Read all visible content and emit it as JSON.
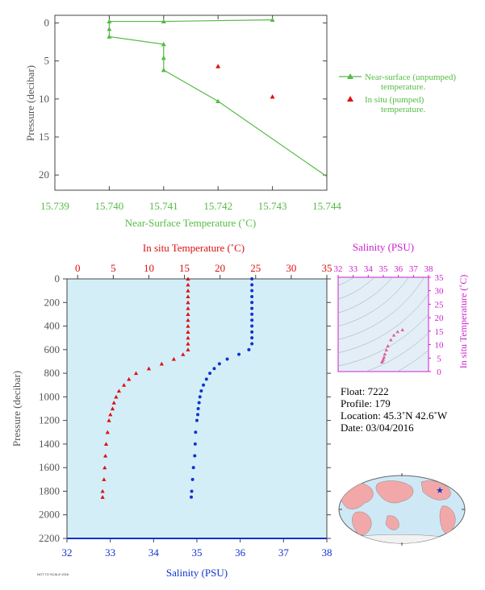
{
  "colors": {
    "green": "#55bb44",
    "red": "#dd1111",
    "blue": "#1133cc",
    "magenta": "#cc22cc",
    "axis_text": "#555555",
    "panel_bg": "#d4eef8"
  },
  "chart_data": [
    {
      "type": "line",
      "name": "near-surface",
      "xlabel": "Near-Surface Temperature (˚C)",
      "ylabel": "Pressure (decibar)",
      "xlim": [
        15.739,
        15.744
      ],
      "ylim": [
        22,
        -1
      ],
      "xticks": [
        "15.739",
        "15.740",
        "15.741",
        "15.742",
        "15.743",
        "15.744"
      ],
      "yticks": [
        "0",
        "5",
        "10",
        "15",
        "20"
      ],
      "series": [
        {
          "name": "Near-surface (unpumped) temperature.",
          "marker": "triangle",
          "x": [
            15.743,
            15.741,
            15.74,
            15.74,
            15.74,
            15.741,
            15.741,
            15.741,
            15.742,
            15.744
          ],
          "y": [
            -0.4,
            -0.2,
            -0.2,
            0.8,
            1.8,
            2.8,
            4.6,
            6.2,
            10.3,
            20.2
          ]
        },
        {
          "name": "In situ (pumped) temperature.",
          "marker": "triangle",
          "x": [
            15.742,
            15.743
          ],
          "y": [
            5.7,
            9.7
          ]
        }
      ],
      "legend": {
        "position": "right",
        "entries": [
          "Near-surface (unpumped)",
          "temperature.",
          "In situ (pumped)",
          "temperature."
        ]
      }
    },
    {
      "type": "scatter",
      "name": "profile",
      "ylabel": "Pressure (decibar)",
      "top_xlabel": "In situ Temperature (˚C)",
      "bottom_xlabel": "Salinity (PSU)",
      "temp_lim": [
        -1.5,
        35
      ],
      "sal_lim": [
        32,
        38
      ],
      "ylim": [
        2200,
        0
      ],
      "temp_ticks": [
        "0",
        "5",
        "10",
        "15",
        "20",
        "25",
        "30",
        "35"
      ],
      "sal_ticks": [
        "32",
        "33",
        "34",
        "35",
        "36",
        "37",
        "38"
      ],
      "yticks": [
        "0",
        "200",
        "400",
        "600",
        "800",
        "1000",
        "1200",
        "1400",
        "1600",
        "1800",
        "2000",
        "2200"
      ],
      "temperature": {
        "pressure": [
          0,
          50,
          100,
          150,
          200,
          250,
          300,
          350,
          400,
          450,
          500,
          550,
          600,
          640,
          680,
          720,
          760,
          800,
          850,
          900,
          950,
          1000,
          1050,
          1100,
          1150,
          1200,
          1300,
          1400,
          1500,
          1600,
          1700,
          1800,
          1850
        ],
        "values": [
          15.5,
          15.5,
          15.5,
          15.5,
          15.5,
          15.5,
          15.5,
          15.5,
          15.5,
          15.5,
          15.5,
          15.5,
          15.5,
          14.8,
          13.5,
          11.8,
          10.0,
          8.2,
          7.2,
          6.5,
          5.8,
          5.4,
          5.1,
          4.9,
          4.6,
          4.4,
          4.2,
          4.0,
          3.9,
          3.8,
          3.7,
          3.5,
          3.5
        ]
      },
      "salinity": {
        "pressure": [
          0,
          50,
          100,
          150,
          200,
          250,
          300,
          350,
          400,
          450,
          500,
          550,
          600,
          640,
          680,
          720,
          760,
          800,
          850,
          900,
          950,
          1000,
          1050,
          1100,
          1150,
          1200,
          1300,
          1400,
          1500,
          1600,
          1700,
          1800,
          1850
        ],
        "values": [
          36.27,
          36.27,
          36.27,
          36.27,
          36.27,
          36.27,
          36.27,
          36.27,
          36.27,
          36.27,
          36.27,
          36.27,
          36.2,
          35.97,
          35.7,
          35.52,
          35.4,
          35.3,
          35.22,
          35.15,
          35.1,
          35.07,
          35.05,
          35.03,
          35.02,
          35.0,
          34.97,
          34.96,
          34.95,
          34.92,
          34.9,
          34.88,
          34.87
        ]
      }
    },
    {
      "type": "scatter",
      "name": "ts-diagram",
      "xlabel": "Salinity (PSU)",
      "ylabel": "In situ Temperature (˚C)",
      "xlim": [
        32,
        38
      ],
      "ylim": [
        0,
        35
      ],
      "xticks": [
        "32",
        "33",
        "34",
        "35",
        "36",
        "37",
        "38"
      ],
      "yticks": [
        "0",
        "5",
        "10",
        "15",
        "20",
        "25",
        "30",
        "35"
      ],
      "salinity": [
        34.9,
        34.95,
        35.0,
        35.05,
        35.1,
        35.2,
        35.3,
        35.5,
        35.7,
        35.95,
        36.27
      ],
      "temperature": [
        3.5,
        4.0,
        4.6,
        5.4,
        6.5,
        8.0,
        9.5,
        11.8,
        13.5,
        14.8,
        15.5
      ]
    }
  ],
  "float_info": {
    "float": "Float:  7222",
    "profile": "Profile:  179",
    "location": "Location:  45.3˚N  42.6˚W",
    "date": "Date:  03/04/2016"
  },
  "footer_tag": "NOT TO SCALE 2016"
}
